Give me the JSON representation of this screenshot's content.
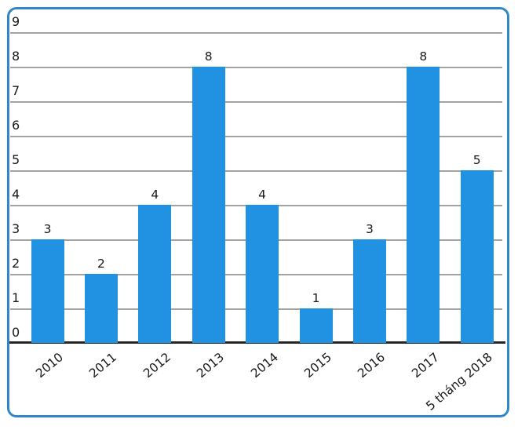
{
  "chart_data": {
    "type": "bar",
    "categories": [
      "2010",
      "2011",
      "2012",
      "2013",
      "2014",
      "2015",
      "2016",
      "2017",
      "5 tháng 2018"
    ],
    "values": [
      3,
      2,
      4,
      8,
      4,
      1,
      3,
      8,
      5
    ],
    "title": "",
    "xlabel": "",
    "ylabel": "",
    "ylim": [
      0,
      9
    ],
    "ytick_step": 1,
    "yticks": [
      "0",
      "1",
      "2",
      "3",
      "4",
      "5",
      "6",
      "7",
      "8",
      "9"
    ],
    "grid": "horizontal",
    "data_labels_shown": true,
    "legend_position": "none",
    "x_tick_rotation_deg": -40,
    "colors": {
      "bar_fill": "#2191e2",
      "frame_border": "#2f87c5",
      "gridline": "#a3a3a3",
      "axis_line": "#262626",
      "text": "#1a1a1a",
      "background": "#ffffff"
    }
  }
}
